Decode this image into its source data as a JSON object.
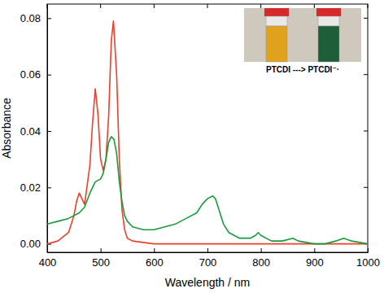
{
  "chart_data": {
    "type": "line",
    "x_label": "Wavelength / nm",
    "y_label": "Absorbance",
    "annotations": [
      "PTCDI ---> PTCDI⁻·"
    ],
    "xlim": [
      400,
      1000
    ],
    "xticks": [
      400,
      500,
      600,
      700,
      800,
      900,
      1000
    ],
    "ylim": [
      -0.003,
      0.085
    ],
    "yticks": [
      {
        "value": 0,
        "label": "0.00"
      },
      {
        "value": 0.02,
        "label": "0.02"
      },
      {
        "value": 0.04,
        "label": "0.04"
      },
      {
        "value": 0.06,
        "label": "0.06"
      },
      {
        "value": 0.08,
        "label": "0.08"
      }
    ],
    "grid": false,
    "series": [
      {
        "color": "#e8412c",
        "x": [
          400,
          420,
          440,
          450,
          455,
          460,
          465,
          470,
          480,
          485,
          490,
          495,
          500,
          505,
          510,
          515,
          520,
          524,
          530,
          535,
          540,
          545,
          550,
          560,
          600,
          700,
          800,
          900,
          1000
        ],
        "values": [
          0.0,
          0.001,
          0.004,
          0.01,
          0.015,
          0.018,
          0.016,
          0.014,
          0.028,
          0.043,
          0.055,
          0.046,
          0.03,
          0.026,
          0.03,
          0.045,
          0.072,
          0.079,
          0.06,
          0.03,
          0.012,
          0.005,
          0.002,
          0.001,
          0.0,
          0.0,
          0.0,
          0.0,
          0.0
        ]
      },
      {
        "color": "#1a9a3c",
        "x": [
          400,
          420,
          440,
          460,
          470,
          480,
          490,
          500,
          505,
          510,
          515,
          520,
          525,
          530,
          535,
          540,
          545,
          550,
          560,
          580,
          600,
          620,
          640,
          660,
          680,
          690,
          700,
          710,
          715,
          720,
          730,
          740,
          760,
          780,
          790,
          795,
          800,
          820,
          840,
          860,
          870,
          900,
          920,
          940,
          955,
          970,
          1000
        ],
        "values": [
          0.007,
          0.008,
          0.009,
          0.011,
          0.013,
          0.018,
          0.022,
          0.023,
          0.025,
          0.03,
          0.036,
          0.038,
          0.037,
          0.032,
          0.022,
          0.015,
          0.01,
          0.008,
          0.006,
          0.005,
          0.005,
          0.006,
          0.007,
          0.009,
          0.011,
          0.014,
          0.016,
          0.017,
          0.016,
          0.013,
          0.007,
          0.004,
          0.002,
          0.002,
          0.003,
          0.004,
          0.003,
          0.001,
          0.001,
          0.002,
          0.001,
          0.0,
          0.0,
          0.001,
          0.002,
          0.001,
          0.0
        ]
      }
    ]
  }
}
